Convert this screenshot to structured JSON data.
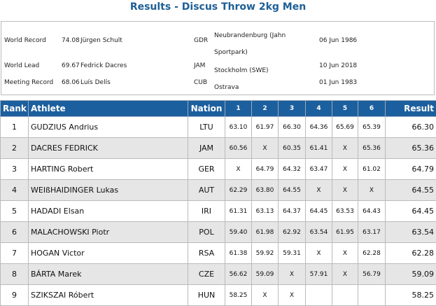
{
  "title": "Results - Discus Throw 2kg Men",
  "records": {
    "rows": [
      {
        "label": "World Record",
        "mark": "74.08",
        "athlete": "Jürgen Schult",
        "country": "GDR",
        "venue": "Neubrandenburg (Jahn Sportpark)",
        "date": "06 Jun 1986"
      },
      {
        "label": "World Lead",
        "mark": "69.67",
        "athlete": "Fedrick Dacres",
        "country": "JAM",
        "venue": "Stockholm (SWE)",
        "date": "10 Jun 2018"
      },
      {
        "label": "Meeting Record",
        "mark": "68.06",
        "athlete": "Luís Delís",
        "country": "CUB",
        "venue": "Ostrava",
        "date": "01 Jun 1983"
      }
    ]
  },
  "results": {
    "headers": [
      "Rank",
      "Athlete",
      "Nation",
      "1",
      "2",
      "3",
      "4",
      "5",
      "6",
      "Result"
    ],
    "rows": [
      [
        "1",
        "GUDZIUS Andrius",
        "LTU",
        "63.10",
        "61.97",
        "66.30",
        "64.36",
        "65.69",
        "65.39",
        "66.30"
      ],
      [
        "2",
        "DACRES FEDRICK",
        "JAM",
        "60.56",
        "X",
        "60.35",
        "61.41",
        "X",
        "65.36",
        "65.36"
      ],
      [
        "3",
        "HARTING Robert",
        "GER",
        "X",
        "64.79",
        "64.32",
        "63.47",
        "X",
        "61.02",
        "64.79"
      ],
      [
        "4",
        "WEIßHAIDINGER Lukas",
        "AUT",
        "62.29",
        "63.80",
        "64.55",
        "X",
        "X",
        "X",
        "64.55"
      ],
      [
        "5",
        "HADADI Elsan",
        "IRI",
        "61.31",
        "63.13",
        "64.37",
        "64.45",
        "63.53",
        "64.43",
        "64.45"
      ],
      [
        "6",
        "MALACHOWSKI Piotr",
        "POL",
        "59.40",
        "61.98",
        "62.92",
        "63.54",
        "61.95",
        "63.17",
        "63.54"
      ],
      [
        "7",
        "HOGAN Victor",
        "RSA",
        "61.38",
        "59.92",
        "59.31",
        "X",
        "X",
        "62.28",
        "62.28"
      ],
      [
        "8",
        "BÁRTA Marek",
        "CZE",
        "56.62",
        "59.09",
        "X",
        "57.91",
        "X",
        "56.79",
        "59.09"
      ],
      [
        "9",
        "SZIKSZAI Róbert",
        "HUN",
        "58.25",
        "X",
        "X",
        null,
        null,
        null,
        "58.25"
      ]
    ]
  }
}
